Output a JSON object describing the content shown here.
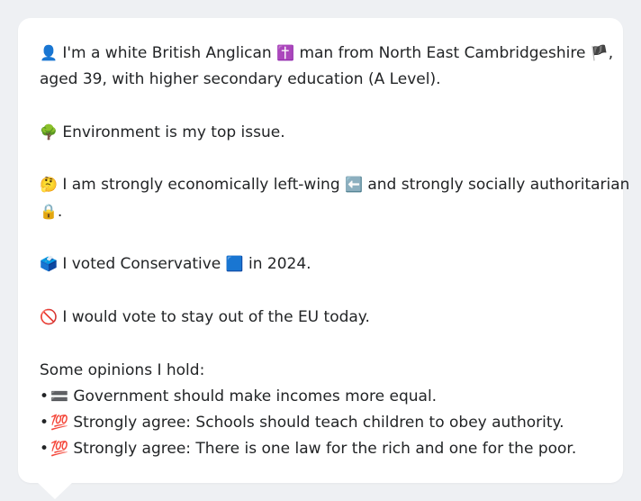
{
  "profile": {
    "intro_emoji": "👤",
    "intro_a": "I'm a white British Anglican",
    "religion_emoji": "✝️",
    "intro_b": "man from North East Cambridgeshire",
    "flag_emoji": "🏴",
    "intro_c": ",",
    "intro_line2": "aged 39, with higher secondary education (A Level).",
    "issue_emoji": "🌳",
    "issue_text": "Environment is my top issue.",
    "econ_emoji": "🤔",
    "econ_a": "I am strongly economically left-wing",
    "left_emoji": "⬅️",
    "econ_b": "and strongly socially authoritarian",
    "lock_emoji": "🔒",
    "econ_c": ".",
    "vote_emoji": "🗳️",
    "vote_a": "I voted Conservative",
    "party_emoji": "🟦",
    "vote_b": "in 2024.",
    "eu_emoji": "🚫",
    "eu_text": "I would vote to stay out of the EU today.",
    "opinions_heading": "Some opinions I hold:",
    "opinions": [
      {
        "bullet": "•",
        "emoji": "🟰",
        "text": "Government should make incomes more equal."
      },
      {
        "bullet": "•",
        "emoji": "💯",
        "text": "Strongly agree: Schools should teach children to obey authority."
      },
      {
        "bullet": "•",
        "emoji": "💯",
        "text": "Strongly agree: There is one law for the rich and one for the poor."
      }
    ]
  }
}
